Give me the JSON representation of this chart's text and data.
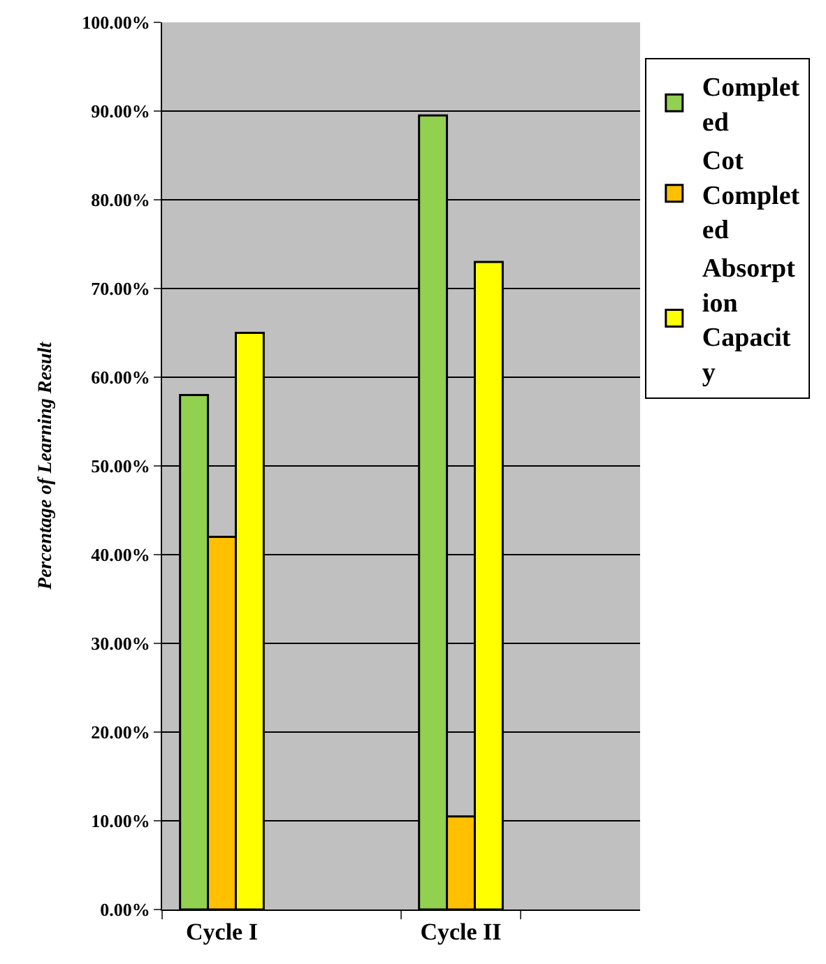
{
  "chart_data": {
    "type": "bar",
    "ylabel": "Percentage of Learning Result",
    "categories": [
      "Cycle I",
      null,
      "Cycle II",
      null
    ],
    "series": [
      {
        "name": "Completed",
        "color": "#92d050",
        "values": [
          58,
          null,
          89.5,
          null
        ]
      },
      {
        "name": "Cot Completed",
        "color": "#ffc000",
        "values": [
          42,
          null,
          10.5,
          null
        ]
      },
      {
        "name": "Absorption Capacity",
        "color": "#ffff00",
        "values": [
          65,
          null,
          73,
          null
        ]
      }
    ],
    "ylim": [
      0,
      100
    ],
    "yticks": [
      {
        "value": 0,
        "label": "0.00%"
      },
      {
        "value": 10,
        "label": "10.00%"
      },
      {
        "value": 20,
        "label": "20.00%"
      },
      {
        "value": 30,
        "label": "30.00%"
      },
      {
        "value": 40,
        "label": "40.00%"
      },
      {
        "value": 50,
        "label": "50.00%"
      },
      {
        "value": 60,
        "label": "60.00%"
      },
      {
        "value": 70,
        "label": "70.00%"
      },
      {
        "value": 80,
        "label": "80.00%"
      },
      {
        "value": 90,
        "label": "90.00%"
      },
      {
        "value": 100,
        "label": "100.00%"
      }
    ],
    "grid": "y",
    "legend": "right"
  }
}
